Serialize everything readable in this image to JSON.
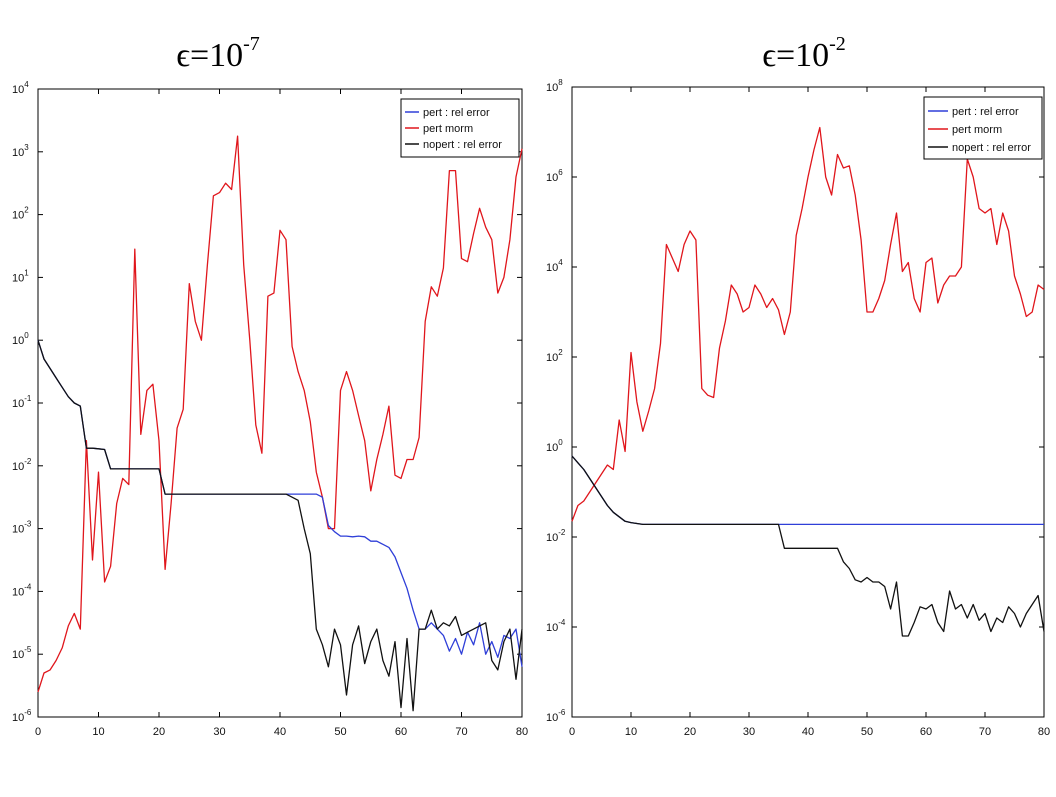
{
  "chart_data": [
    {
      "type": "line",
      "title": "ϵ=10",
      "title_exponent": "-7",
      "xlim": [
        0,
        80
      ],
      "ylim_exponent": [
        -6,
        4
      ],
      "y_scale": "log",
      "grid": false,
      "legend_position": "top-right",
      "x_ticks": [
        0,
        10,
        20,
        30,
        40,
        50,
        60,
        70,
        80
      ],
      "y_ticks": [
        -6,
        -5,
        -4,
        -3,
        -2,
        -1,
        0,
        1,
        2,
        3,
        4
      ],
      "series": [
        {
          "name": "pert : rel error",
          "color": "#2f3fd8",
          "x": [
            0,
            1,
            2,
            3,
            4,
            5,
            6,
            7,
            8,
            9,
            10,
            11,
            12,
            13,
            14,
            15,
            16,
            17,
            18,
            19,
            20,
            21,
            22,
            23,
            24,
            25,
            26,
            27,
            28,
            29,
            30,
            31,
            32,
            33,
            34,
            35,
            36,
            37,
            38,
            39,
            40,
            41,
            42,
            43,
            44,
            45,
            46,
            47,
            48,
            49,
            50,
            51,
            52,
            53,
            54,
            55,
            56,
            57,
            58,
            59,
            60,
            61,
            62,
            63,
            64,
            65,
            66,
            67,
            68,
            69,
            70,
            71,
            72,
            73,
            74,
            75,
            76,
            77,
            78,
            79,
            80
          ],
          "log10_y": [
            0,
            -0.3,
            -0.45,
            -0.6,
            -0.75,
            -0.9,
            -1.0,
            -1.05,
            -1.72,
            -1.72,
            -1.73,
            -1.74,
            -2.05,
            -2.05,
            -2.05,
            -2.05,
            -2.05,
            -2.05,
            -2.05,
            -2.05,
            -2.05,
            -2.45,
            -2.45,
            -2.45,
            -2.45,
            -2.45,
            -2.45,
            -2.45,
            -2.45,
            -2.45,
            -2.45,
            -2.45,
            -2.45,
            -2.45,
            -2.45,
            -2.45,
            -2.45,
            -2.45,
            -2.45,
            -2.45,
            -2.45,
            -2.45,
            -2.45,
            -2.45,
            -2.45,
            -2.45,
            -2.45,
            -2.5,
            -2.95,
            -3.05,
            -3.12,
            -3.12,
            -3.13,
            -3.12,
            -3.13,
            -3.2,
            -3.2,
            -3.25,
            -3.3,
            -3.45,
            -3.7,
            -3.95,
            -4.3,
            -4.6,
            -4.6,
            -4.5,
            -4.6,
            -4.7,
            -4.95,
            -4.75,
            -5.0,
            -4.65,
            -4.85,
            -4.5,
            -5.0,
            -4.8,
            -5.05,
            -4.7,
            -4.75,
            -4.6,
            -5.2
          ]
        },
        {
          "name": "pert morm",
          "color": "#e0161c",
          "x": [
            0,
            1,
            2,
            3,
            4,
            5,
            6,
            7,
            8,
            9,
            10,
            11,
            12,
            13,
            14,
            15,
            16,
            17,
            18,
            19,
            20,
            21,
            22,
            23,
            24,
            25,
            26,
            27,
            28,
            29,
            30,
            31,
            32,
            33,
            34,
            35,
            36,
            37,
            38,
            39,
            40,
            41,
            42,
            43,
            44,
            45,
            46,
            47,
            48,
            49,
            50,
            51,
            52,
            53,
            54,
            55,
            56,
            57,
            58,
            59,
            60,
            61,
            62,
            63,
            64,
            65,
            66,
            67,
            68,
            69,
            70,
            71,
            72,
            73,
            74,
            75,
            76,
            77,
            78,
            79,
            80
          ],
          "log10_y": [
            -5.6,
            -5.3,
            -5.25,
            -5.1,
            -4.9,
            -4.55,
            -4.35,
            -4.6,
            -1.6,
            -3.5,
            -2.1,
            -3.85,
            -3.6,
            -2.6,
            -2.2,
            -2.3,
            1.45,
            -1.5,
            -0.8,
            -0.7,
            -1.6,
            -3.65,
            -2.6,
            -1.4,
            -1.1,
            0.9,
            0.3,
            0.0,
            1.2,
            2.3,
            2.35,
            2.5,
            2.4,
            3.25,
            1.2,
            0.0,
            -1.35,
            -1.8,
            0.7,
            0.75,
            1.75,
            1.6,
            -0.1,
            -0.5,
            -0.8,
            -1.3,
            -2.1,
            -2.5,
            -3.0,
            -3.0,
            -0.8,
            -0.5,
            -0.8,
            -1.2,
            -1.6,
            -2.4,
            -1.9,
            -1.5,
            -1.05,
            -2.15,
            -2.2,
            -1.9,
            -1.9,
            -1.55,
            0.3,
            0.85,
            0.7,
            1.15,
            2.7,
            2.7,
            1.3,
            1.25,
            1.7,
            2.1,
            1.8,
            1.6,
            0.75,
            1.0,
            1.6,
            2.6,
            3.05
          ]
        },
        {
          "name": "nopert : rel error",
          "color": "#111111",
          "x": [
            0,
            1,
            2,
            3,
            4,
            5,
            6,
            7,
            8,
            9,
            10,
            11,
            12,
            13,
            14,
            15,
            16,
            17,
            18,
            19,
            20,
            21,
            22,
            23,
            24,
            25,
            26,
            27,
            28,
            29,
            30,
            31,
            32,
            33,
            34,
            35,
            36,
            37,
            38,
            39,
            40,
            41,
            42,
            43,
            44,
            45,
            46,
            47,
            48,
            49,
            50,
            51,
            52,
            53,
            54,
            55,
            56,
            57,
            58,
            59,
            60,
            61,
            62,
            63,
            64,
            65,
            66,
            67,
            68,
            69,
            70,
            71,
            72,
            73,
            74,
            75,
            76,
            77,
            78,
            79,
            80
          ],
          "log10_y": [
            0,
            -0.3,
            -0.45,
            -0.6,
            -0.75,
            -0.9,
            -1.0,
            -1.05,
            -1.72,
            -1.72,
            -1.73,
            -1.74,
            -2.05,
            -2.05,
            -2.05,
            -2.05,
            -2.05,
            -2.05,
            -2.05,
            -2.05,
            -2.05,
            -2.45,
            -2.45,
            -2.45,
            -2.45,
            -2.45,
            -2.45,
            -2.45,
            -2.45,
            -2.45,
            -2.45,
            -2.45,
            -2.45,
            -2.45,
            -2.45,
            -2.45,
            -2.45,
            -2.45,
            -2.45,
            -2.45,
            -2.45,
            -2.45,
            -2.5,
            -2.55,
            -3.0,
            -3.4,
            -4.6,
            -4.85,
            -5.2,
            -4.6,
            -4.85,
            -5.65,
            -4.85,
            -4.55,
            -5.15,
            -4.8,
            -4.6,
            -5.1,
            -5.35,
            -4.8,
            -5.85,
            -4.75,
            -5.9,
            -4.6,
            -4.6,
            -4.3,
            -4.6,
            -4.5,
            -4.55,
            -4.4,
            -4.7,
            -4.65,
            -4.6,
            -4.55,
            -4.5,
            -5.1,
            -5.25,
            -4.8,
            -4.6,
            -5.4,
            -4.6
          ]
        }
      ]
    },
    {
      "type": "line",
      "title": "ϵ=10",
      "title_exponent": "-2",
      "xlim": [
        0,
        80
      ],
      "ylim_exponent": [
        -6,
        8
      ],
      "y_scale": "log",
      "grid": false,
      "legend_position": "top-right",
      "x_ticks": [
        0,
        10,
        20,
        30,
        40,
        50,
        60,
        70,
        80
      ],
      "y_ticks": [
        -6,
        -4,
        -2,
        0,
        2,
        4,
        6,
        8
      ],
      "series": [
        {
          "name": "pert : rel error",
          "color": "#2f3fd8",
          "x": [
            0,
            1,
            2,
            3,
            4,
            5,
            6,
            7,
            8,
            9,
            10,
            11,
            12,
            13,
            14,
            15,
            16,
            17,
            18,
            19,
            20,
            21,
            22,
            23,
            24,
            25,
            26,
            27,
            28,
            29,
            30,
            31,
            32,
            33,
            34,
            35,
            36,
            37,
            38,
            39,
            40,
            41,
            42,
            43,
            44,
            45,
            46,
            47,
            48,
            49,
            50,
            51,
            52,
            53,
            54,
            55,
            56,
            57,
            58,
            59,
            60,
            61,
            62,
            63,
            64,
            65,
            66,
            67,
            68,
            69,
            70,
            71,
            72,
            73,
            74,
            75,
            76,
            77,
            78,
            79,
            80
          ],
          "log10_y": [
            -0.2,
            -0.35,
            -0.5,
            -0.7,
            -0.9,
            -1.1,
            -1.3,
            -1.45,
            -1.55,
            -1.65,
            -1.68,
            -1.7,
            -1.72,
            -1.72,
            -1.72,
            -1.72,
            -1.72,
            -1.72,
            -1.72,
            -1.72,
            -1.72,
            -1.72,
            -1.72,
            -1.72,
            -1.72,
            -1.72,
            -1.72,
            -1.72,
            -1.72,
            -1.72,
            -1.72,
            -1.72,
            -1.72,
            -1.72,
            -1.72,
            -1.72,
            -1.72,
            -1.72,
            -1.72,
            -1.72,
            -1.72,
            -1.72,
            -1.72,
            -1.72,
            -1.72,
            -1.72,
            -1.72,
            -1.72,
            -1.72,
            -1.72,
            -1.72,
            -1.72,
            -1.72,
            -1.72,
            -1.72,
            -1.72,
            -1.72,
            -1.72,
            -1.72,
            -1.72,
            -1.72,
            -1.72,
            -1.72,
            -1.72,
            -1.72,
            -1.72,
            -1.72,
            -1.72,
            -1.72,
            -1.72,
            -1.72,
            -1.72,
            -1.72,
            -1.72,
            -1.72,
            -1.72,
            -1.72,
            -1.72,
            -1.72,
            -1.72,
            -1.72
          ]
        },
        {
          "name": "pert morm",
          "color": "#e0161c",
          "x": [
            0,
            1,
            2,
            3,
            4,
            5,
            6,
            7,
            8,
            9,
            10,
            11,
            12,
            13,
            14,
            15,
            16,
            17,
            18,
            19,
            20,
            21,
            22,
            23,
            24,
            25,
            26,
            27,
            28,
            29,
            30,
            31,
            32,
            33,
            34,
            35,
            36,
            37,
            38,
            39,
            40,
            41,
            42,
            43,
            44,
            45,
            46,
            47,
            48,
            49,
            50,
            51,
            52,
            53,
            54,
            55,
            56,
            57,
            58,
            59,
            60,
            61,
            62,
            63,
            64,
            65,
            66,
            67,
            68,
            69,
            70,
            71,
            72,
            73,
            74,
            75,
            76,
            77,
            78,
            79,
            80
          ],
          "log10_y": [
            -1.65,
            -1.3,
            -1.2,
            -1.0,
            -0.8,
            -0.6,
            -0.4,
            -0.5,
            0.6,
            -0.1,
            2.1,
            1.0,
            0.35,
            0.8,
            1.3,
            2.3,
            4.5,
            4.2,
            3.9,
            4.5,
            4.8,
            4.6,
            1.3,
            1.15,
            1.1,
            2.2,
            2.8,
            3.6,
            3.4,
            3.0,
            3.1,
            3.6,
            3.4,
            3.1,
            3.3,
            3.05,
            2.5,
            3.0,
            4.7,
            5.3,
            6.0,
            6.6,
            7.1,
            6.0,
            5.6,
            6.5,
            6.2,
            6.25,
            5.6,
            4.6,
            3.0,
            3.0,
            3.3,
            3.7,
            4.5,
            5.2,
            3.9,
            4.1,
            3.3,
            3.0,
            4.1,
            4.2,
            3.2,
            3.6,
            3.8,
            3.8,
            4.0,
            6.4,
            6.0,
            5.3,
            5.2,
            5.3,
            4.5,
            5.2,
            4.8,
            3.8,
            3.4,
            2.9,
            3.0,
            3.6,
            3.5
          ]
        },
        {
          "name": "nopert : rel error",
          "color": "#111111",
          "x": [
            0,
            1,
            2,
            3,
            4,
            5,
            6,
            7,
            8,
            9,
            10,
            11,
            12,
            13,
            14,
            15,
            16,
            17,
            18,
            19,
            20,
            21,
            22,
            23,
            24,
            25,
            26,
            27,
            28,
            29,
            30,
            31,
            32,
            33,
            34,
            35,
            36,
            37,
            38,
            39,
            40,
            41,
            42,
            43,
            44,
            45,
            46,
            47,
            48,
            49,
            50,
            51,
            52,
            53,
            54,
            55,
            56,
            57,
            58,
            59,
            60,
            61,
            62,
            63,
            64,
            65,
            66,
            67,
            68,
            69,
            70,
            71,
            72,
            73,
            74,
            75,
            76,
            77,
            78,
            79,
            80
          ],
          "log10_y": [
            -0.2,
            -0.35,
            -0.5,
            -0.7,
            -0.9,
            -1.1,
            -1.3,
            -1.45,
            -1.55,
            -1.65,
            -1.68,
            -1.7,
            -1.72,
            -1.72,
            -1.72,
            -1.72,
            -1.72,
            -1.72,
            -1.72,
            -1.72,
            -1.72,
            -1.72,
            -1.72,
            -1.72,
            -1.72,
            -1.72,
            -1.72,
            -1.72,
            -1.72,
            -1.72,
            -1.72,
            -1.72,
            -1.72,
            -1.72,
            -1.72,
            -1.72,
            -2.25,
            -2.25,
            -2.25,
            -2.25,
            -2.25,
            -2.25,
            -2.25,
            -2.25,
            -2.25,
            -2.25,
            -2.55,
            -2.7,
            -2.95,
            -3.0,
            -2.9,
            -3.0,
            -3.0,
            -3.1,
            -3.6,
            -3.0,
            -4.2,
            -4.2,
            -3.9,
            -3.55,
            -3.6,
            -3.5,
            -3.9,
            -4.1,
            -3.2,
            -3.6,
            -3.5,
            -3.8,
            -3.5,
            -3.85,
            -3.7,
            -4.1,
            -3.8,
            -3.9,
            -3.55,
            -3.7,
            -4.0,
            -3.7,
            -3.5,
            -3.3,
            -4.1
          ]
        }
      ]
    }
  ]
}
